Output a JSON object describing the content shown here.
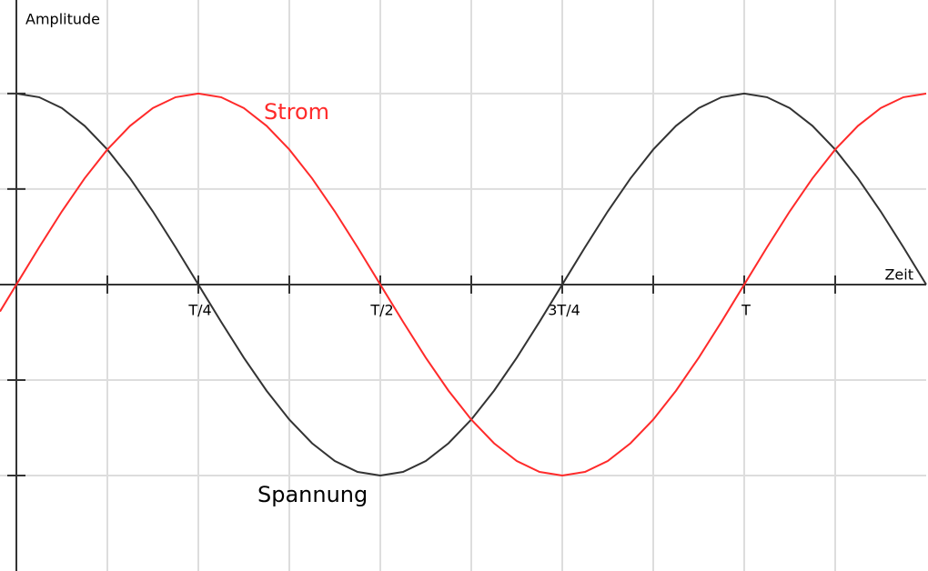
{
  "chart_data": {
    "type": "line",
    "xlabel": "Zeit",
    "ylabel": "Amplitude",
    "xlim": [
      -0.0225,
      1.25
    ],
    "ylim": [
      -1.5,
      1.49
    ],
    "xticks": [
      {
        "value": 0.25,
        "label": "T/4"
      },
      {
        "value": 0.5,
        "label": "T/2"
      },
      {
        "value": 0.75,
        "label": "3T/4"
      },
      {
        "value": 1,
        "label": "T"
      }
    ],
    "xgrid": [
      0.125,
      0.375,
      0.625,
      0.875,
      1.125
    ],
    "ygrid": [
      -1,
      -0.5,
      0.5,
      1
    ],
    "grid": true,
    "series": [
      {
        "name": "Spannung",
        "color": "#333333",
        "x": [
          0,
          0.03125,
          0.0625,
          0.09375,
          0.125,
          0.15625,
          0.1875,
          0.21875,
          0.25,
          0.28125,
          0.3125,
          0.34375,
          0.375,
          0.40625,
          0.4375,
          0.46875,
          0.5,
          0.53125,
          0.5625,
          0.59375,
          0.625,
          0.65625,
          0.6875,
          0.71875,
          0.75,
          0.78125,
          0.8125,
          0.84375,
          0.875,
          0.90625,
          0.9375,
          0.96875,
          1,
          1.03125,
          1.0625,
          1.09375,
          1.125,
          1.15625,
          1.1875,
          1.21875,
          1.25
        ],
        "values": [
          1,
          0.981,
          0.924,
          0.831,
          0.707,
          0.556,
          0.383,
          0.195,
          0,
          -0.195,
          -0.383,
          -0.556,
          -0.707,
          -0.831,
          -0.924,
          -0.981,
          -1,
          -0.981,
          -0.924,
          -0.831,
          -0.707,
          -0.556,
          -0.383,
          -0.195,
          0,
          0.195,
          0.383,
          0.556,
          0.707,
          0.831,
          0.924,
          0.981,
          1,
          0.981,
          0.924,
          0.831,
          0.707,
          0.556,
          0.383,
          0.195,
          0
        ]
      },
      {
        "name": "Strom",
        "color": "#ff2a2a",
        "x": [
          -0.0225,
          0,
          0.03125,
          0.0625,
          0.09375,
          0.125,
          0.15625,
          0.1875,
          0.21875,
          0.25,
          0.28125,
          0.3125,
          0.34375,
          0.375,
          0.40625,
          0.4375,
          0.46875,
          0.5,
          0.53125,
          0.5625,
          0.59375,
          0.625,
          0.65625,
          0.6875,
          0.71875,
          0.75,
          0.78125,
          0.8125,
          0.84375,
          0.875,
          0.90625,
          0.9375,
          0.96875,
          1,
          1.03125,
          1.0625,
          1.09375,
          1.125,
          1.15625,
          1.1875,
          1.21875,
          1.25
        ],
        "values": [
          -0.141,
          0,
          0.195,
          0.383,
          0.556,
          0.707,
          0.831,
          0.924,
          0.981,
          1,
          0.981,
          0.924,
          0.831,
          0.707,
          0.556,
          0.383,
          0.195,
          0,
          -0.195,
          -0.383,
          -0.556,
          -0.707,
          -0.831,
          -0.924,
          -0.981,
          -1,
          -0.981,
          -0.924,
          -0.831,
          -0.707,
          -0.556,
          -0.383,
          -0.195,
          0,
          0.195,
          0.383,
          0.556,
          0.707,
          0.831,
          0.924,
          0.981,
          1
        ]
      }
    ]
  }
}
